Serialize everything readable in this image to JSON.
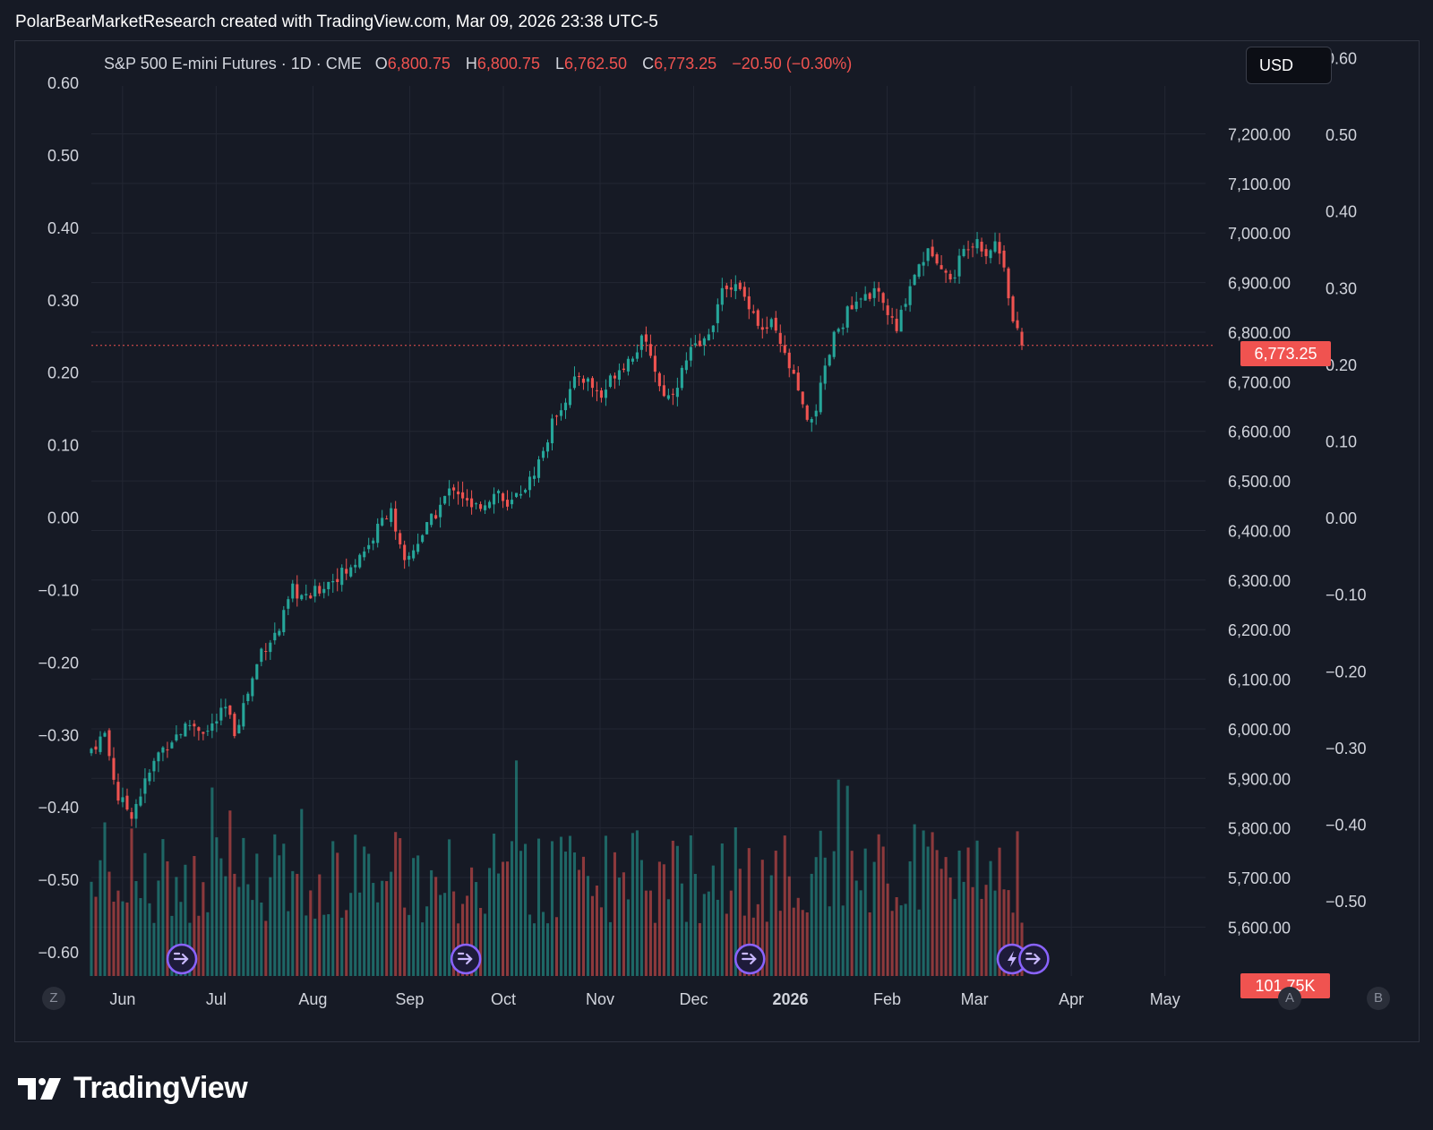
{
  "header": {
    "attribution": "PolarBearMarketResearch created with TradingView.com, Mar 09, 2026 23:38 UTC-5"
  },
  "legend": {
    "symbol": "S&P 500 E-mini Futures · 1D · CME",
    "o_label": "O",
    "o_value": "6,800.75",
    "h_label": "H",
    "h_value": "6,800.75",
    "l_label": "L",
    "l_value": "6,762.50",
    "c_label": "C",
    "c_value": "6,773.25",
    "change": "−20.50 (−0.30%)"
  },
  "currency_button": "USD",
  "last_price_label": "6,773.25",
  "volume_label": "101.75K",
  "scale_buttons": {
    "left": "Z",
    "auto": "A",
    "right": "B"
  },
  "footer": {
    "brand": "TradingView"
  },
  "colors": {
    "up": "#26a69a",
    "down": "#ef5350",
    "background": "#161a25",
    "grid": "#232733",
    "event": "#8a63ff"
  },
  "icons": [
    "dividend-arrow-icon",
    "earnings-bolt-icon",
    "tradingview-logo-icon"
  ],
  "chart_data": {
    "type": "candlestick",
    "title": "S&P 500 E-mini Futures · 1D · CME",
    "price_axis": {
      "range": [
        5520,
        7320
      ],
      "ticks": [
        "7,200.00",
        "7,100.00",
        "7,000.00",
        "6,900.00",
        "6,800.00",
        "6,700.00",
        "6,600.00",
        "6,500.00",
        "6,400.00",
        "6,300.00",
        "6,200.00",
        "6,100.00",
        "6,000.00",
        "5,900.00",
        "5,800.00",
        "5,700.00",
        "5,600.00"
      ]
    },
    "left_axis": {
      "range": [
        -0.63,
        0.62
      ],
      "ticks": [
        "0.60",
        "0.50",
        "0.40",
        "0.30",
        "0.20",
        "0.10",
        "0.00",
        "−0.10",
        "−0.20",
        "−0.30",
        "−0.40",
        "−0.50",
        "−0.60"
      ]
    },
    "right_axis": {
      "range": [
        -0.59,
        0.62
      ],
      "ticks": [
        "0.60",
        "0.50",
        "0.40",
        "0.30",
        "0.20",
        "0.10",
        "0.00",
        "−0.10",
        "−0.20",
        "−0.30",
        "−0.40",
        "−0.50"
      ]
    },
    "x_axis": {
      "range": [
        "2025-05-22",
        "2026-05-14"
      ],
      "ticks": [
        {
          "label": "Jun",
          "date": "2025-06-01",
          "bold": false
        },
        {
          "label": "Jul",
          "date": "2025-07-01",
          "bold": false
        },
        {
          "label": "Aug",
          "date": "2025-08-01",
          "bold": false
        },
        {
          "label": "Sep",
          "date": "2025-09-01",
          "bold": false
        },
        {
          "label": "Oct",
          "date": "2025-10-01",
          "bold": false
        },
        {
          "label": "Nov",
          "date": "2025-11-01",
          "bold": false
        },
        {
          "label": "Dec",
          "date": "2025-12-01",
          "bold": false
        },
        {
          "label": "2026",
          "date": "2026-01-01",
          "bold": true
        },
        {
          "label": "Feb",
          "date": "2026-02-01",
          "bold": false
        },
        {
          "label": "Mar",
          "date": "2026-03-01",
          "bold": false
        },
        {
          "label": "Apr",
          "date": "2026-04-01",
          "bold": false
        },
        {
          "label": "May",
          "date": "2026-05-01",
          "bold": false
        }
      ]
    },
    "last_price": 6773.25,
    "start_date": "2025-05-22",
    "trading_days": 209,
    "close_path": [
      [
        0,
        5960
      ],
      [
        3,
        5990
      ],
      [
        6,
        5860
      ],
      [
        9,
        5830
      ],
      [
        12,
        5890
      ],
      [
        15,
        5950
      ],
      [
        18,
        5980
      ],
      [
        22,
        6010
      ],
      [
        26,
        5995
      ],
      [
        30,
        6040
      ],
      [
        32,
        5995
      ],
      [
        36,
        6100
      ],
      [
        38,
        6160
      ],
      [
        42,
        6200
      ],
      [
        45,
        6280
      ],
      [
        48,
        6260
      ],
      [
        52,
        6290
      ],
      [
        55,
        6310
      ],
      [
        58,
        6320
      ],
      [
        60,
        6355
      ],
      [
        62,
        6370
      ],
      [
        65,
        6420
      ],
      [
        67,
        6450
      ],
      [
        68,
        6390
      ],
      [
        70,
        6330
      ],
      [
        73,
        6380
      ],
      [
        76,
        6420
      ],
      [
        79,
        6465
      ],
      [
        81,
        6490
      ],
      [
        83,
        6470
      ],
      [
        85,
        6440
      ],
      [
        88,
        6460
      ],
      [
        91,
        6480
      ],
      [
        93,
        6440
      ],
      [
        95,
        6470
      ],
      [
        98,
        6500
      ],
      [
        101,
        6560
      ],
      [
        104,
        6640
      ],
      [
        107,
        6680
      ],
      [
        109,
        6715
      ],
      [
        111,
        6700
      ],
      [
        114,
        6670
      ],
      [
        117,
        6720
      ],
      [
        120,
        6745
      ],
      [
        123,
        6780
      ],
      [
        125,
        6760
      ],
      [
        127,
        6690
      ],
      [
        129,
        6670
      ],
      [
        131,
        6700
      ],
      [
        134,
        6760
      ],
      [
        137,
        6780
      ],
      [
        140,
        6850
      ],
      [
        142,
        6900
      ],
      [
        144,
        6890
      ],
      [
        147,
        6860
      ],
      [
        150,
        6800
      ],
      [
        152,
        6815
      ],
      [
        154,
        6770
      ],
      [
        156,
        6730
      ],
      [
        158,
        6680
      ],
      [
        160,
        6610
      ],
      [
        162,
        6650
      ],
      [
        164,
        6720
      ],
      [
        166,
        6790
      ],
      [
        169,
        6840
      ],
      [
        172,
        6860
      ],
      [
        174,
        6880
      ],
      [
        176,
        6870
      ],
      [
        178,
        6840
      ],
      [
        180,
        6800
      ],
      [
        182,
        6870
      ],
      [
        184,
        6920
      ],
      [
        186,
        6950
      ],
      [
        188,
        6965
      ],
      [
        190,
        6940
      ],
      [
        192,
        6900
      ],
      [
        194,
        6945
      ],
      [
        196,
        6980
      ],
      [
        198,
        6990
      ],
      [
        200,
        6960
      ],
      [
        202,
        6980
      ],
      [
        204,
        6940
      ],
      [
        206,
        6820
      ],
      [
        208,
        6773.25
      ]
    ],
    "volume": {
      "unit": "contracts",
      "last_value": "101.75K",
      "max_display": 470000
    },
    "events": [
      {
        "type": "dividend",
        "date": "2025-06-20"
      },
      {
        "type": "dividend",
        "date": "2025-09-19"
      },
      {
        "type": "dividend",
        "date": "2025-12-19"
      },
      {
        "type": "earnings",
        "date": "2026-03-13"
      },
      {
        "type": "dividend",
        "date": "2026-03-20"
      }
    ]
  }
}
